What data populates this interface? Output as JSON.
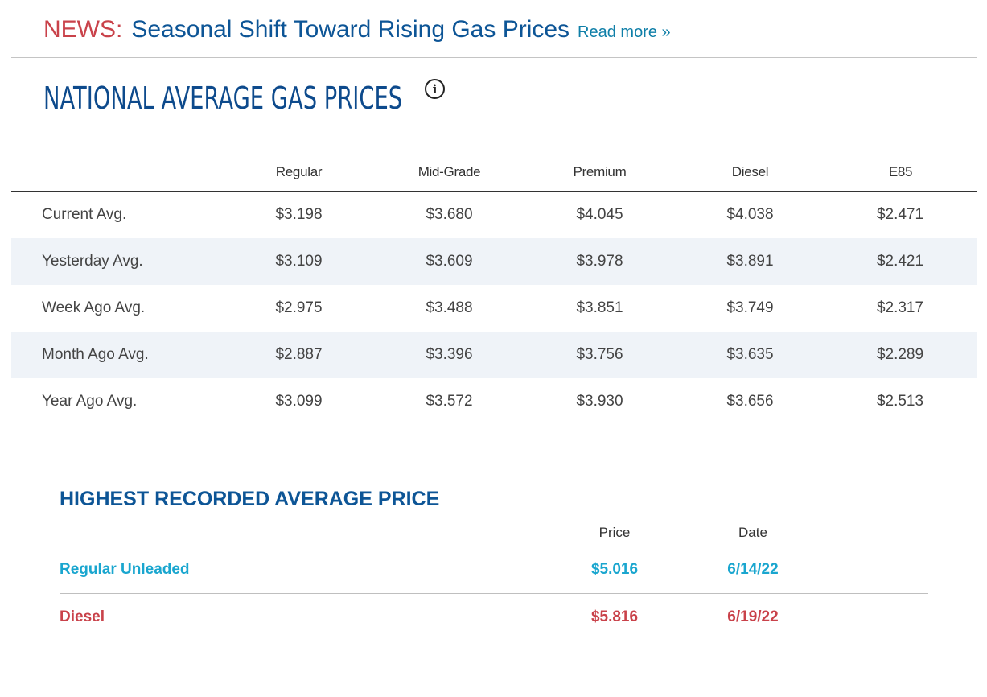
{
  "news": {
    "label": "NEWS:",
    "headline": "Seasonal Shift Toward Rising Gas Prices",
    "read_more": "Read more »"
  },
  "title": {
    "text": "NATIONAL AVERAGE GAS PRICES",
    "info_icon": "info-icon"
  },
  "prices": {
    "headers": [
      "Regular",
      "Mid-Grade",
      "Premium",
      "Diesel",
      "E85"
    ],
    "rows": [
      {
        "label": "Current Avg.",
        "values": [
          "$3.198",
          "$3.680",
          "$4.045",
          "$4.038",
          "$2.471"
        ]
      },
      {
        "label": "Yesterday Avg.",
        "values": [
          "$3.109",
          "$3.609",
          "$3.978",
          "$3.891",
          "$2.421"
        ]
      },
      {
        "label": "Week Ago Avg.",
        "values": [
          "$2.975",
          "$3.488",
          "$3.851",
          "$3.749",
          "$2.317"
        ]
      },
      {
        "label": "Month Ago Avg.",
        "values": [
          "$2.887",
          "$3.396",
          "$3.756",
          "$3.635",
          "$2.289"
        ]
      },
      {
        "label": "Year Ago Avg.",
        "values": [
          "$3.099",
          "$3.572",
          "$3.930",
          "$3.656",
          "$2.513"
        ]
      }
    ]
  },
  "highest": {
    "title": "HIGHEST RECORDED AVERAGE PRICE",
    "headers": {
      "price": "Price",
      "date": "Date"
    },
    "rows": [
      {
        "label": "Regular Unleaded",
        "price": "$5.016",
        "date": "6/14/22"
      },
      {
        "label": "Diesel",
        "price": "$5.816",
        "date": "6/19/22"
      }
    ]
  },
  "colors": {
    "news_red": "#c9424a",
    "brand_blue": "#0d5596",
    "regular_cyan": "#1aa6cf",
    "diesel_red": "#c9424a",
    "stripe": "#eff3f8"
  }
}
